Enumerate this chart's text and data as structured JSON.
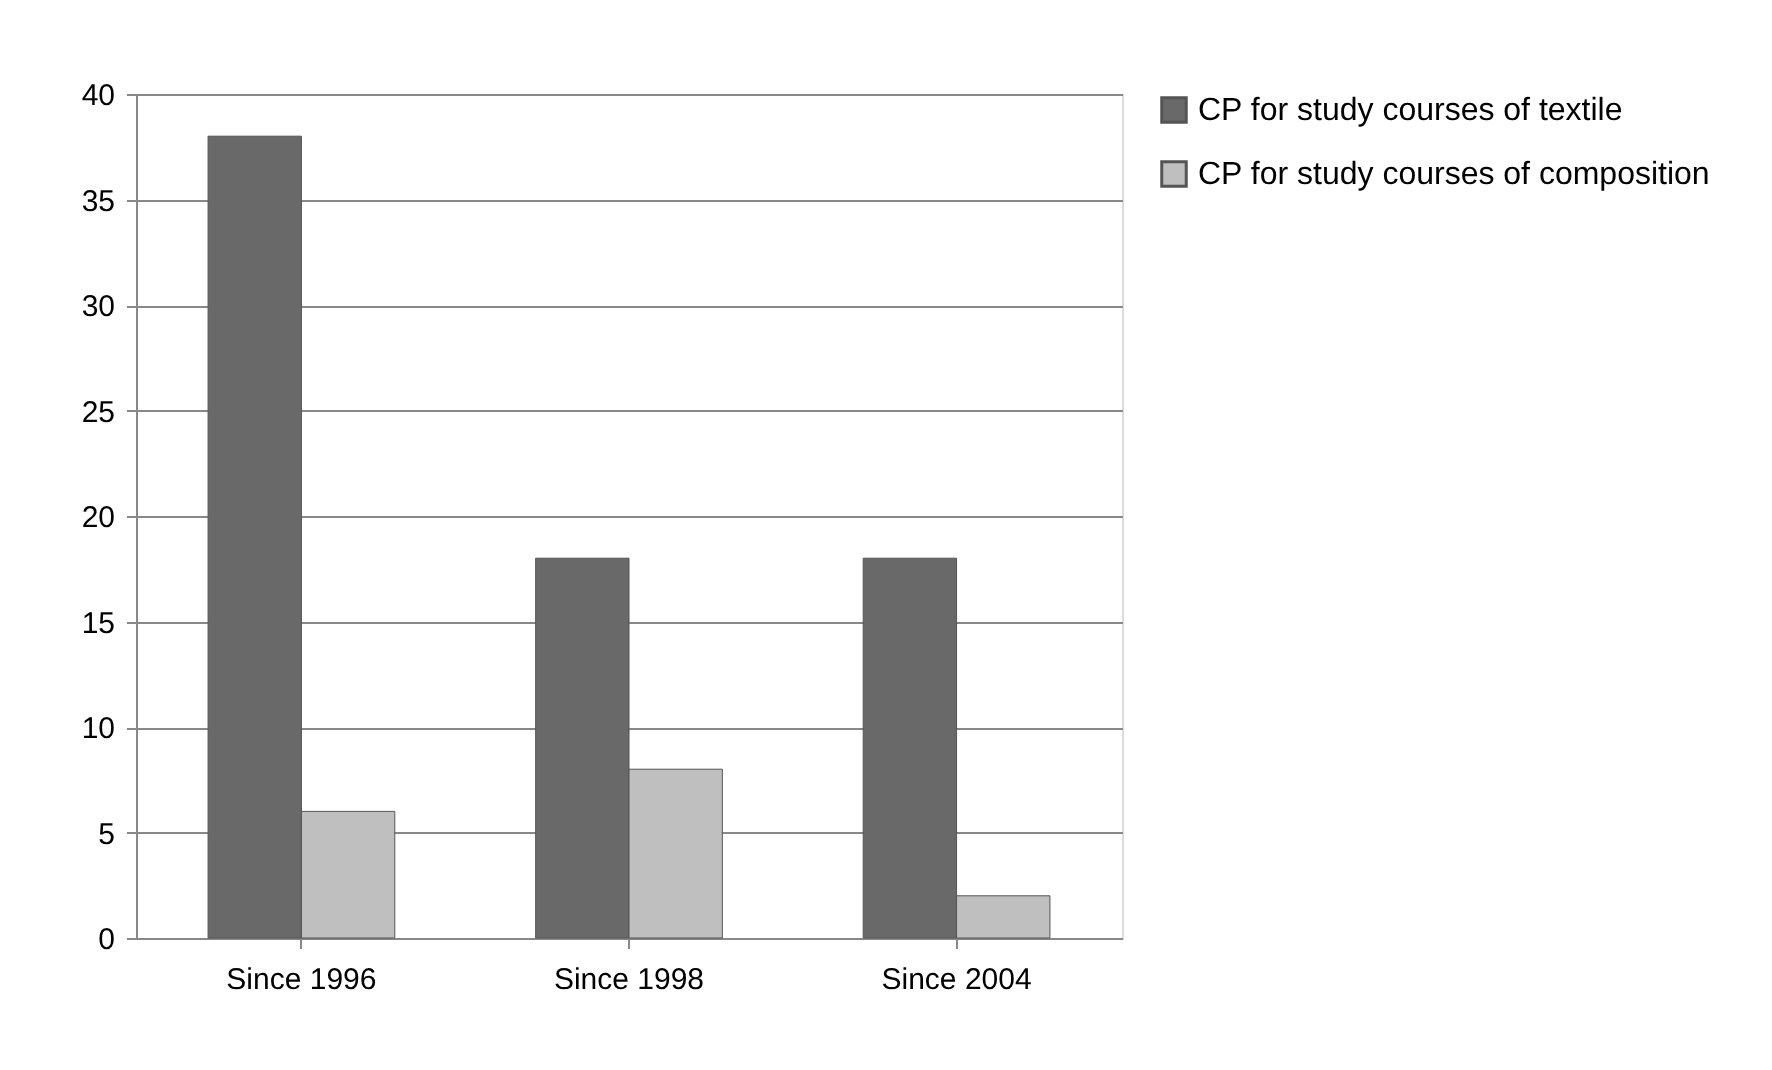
{
  "chart_data": {
    "type": "bar",
    "categories": [
      "Since 1996",
      "Since 1998",
      "Since 2004"
    ],
    "series": [
      {
        "name": "CP for study courses of textile",
        "color": "#696969",
        "values": [
          38,
          18,
          18
        ]
      },
      {
        "name": "CP for study courses of composition",
        "color": "#bfbfbf",
        "values": [
          6,
          8,
          2
        ]
      }
    ],
    "ylim": [
      0,
      40
    ],
    "yticks": [
      0,
      5,
      10,
      15,
      20,
      25,
      30,
      35,
      40
    ],
    "grid": "y",
    "legend": "right"
  }
}
